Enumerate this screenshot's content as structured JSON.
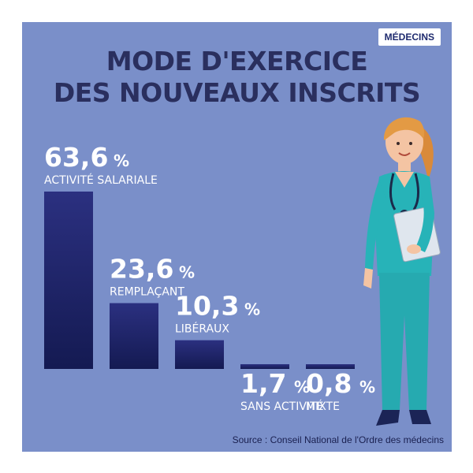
{
  "badge": "MÉDECINS",
  "title": {
    "line1": "MODE D'EXERCICE",
    "line2": "DES NOUVEAUX INSCRITS"
  },
  "source": "Source : Conseil National de l'Ordre des médecins",
  "colors": {
    "background": "#7a8fc9",
    "bar_top": "#2b3080",
    "bar_bottom": "#141a52",
    "title": "#2a2f5e",
    "value_text": "#ffffff"
  },
  "chart_data": {
    "type": "bar",
    "unit": "%",
    "categories": [
      "ACTIVITÉ SALARIALE",
      "REMPLAÇANT",
      "LIBÉRAUX",
      "SANS ACTIVITÉ",
      "MIXTE"
    ],
    "values": [
      63.6,
      23.6,
      10.3,
      1.7,
      0.8
    ],
    "value_labels": [
      "63,6",
      "23,6",
      "10,3",
      "1,7",
      "0,8"
    ],
    "ylim": [
      0,
      63.6
    ]
  },
  "illustration": {
    "icon": "nurse-illustration-icon"
  }
}
